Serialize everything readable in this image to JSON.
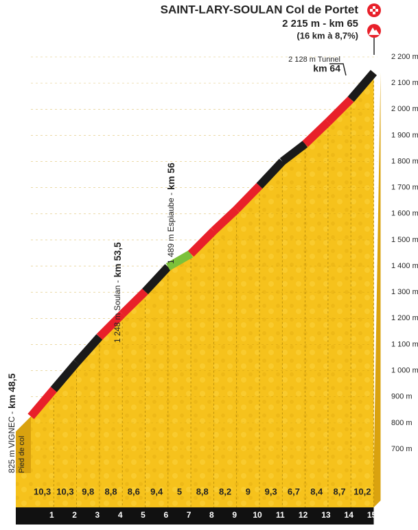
{
  "chart_data": {
    "type": "climb-profile",
    "title": "SAINT-LARY-SOULAN Col de Portet",
    "subtitle": "2 215 m - km 65",
    "note": "(16 km à 8,7%)",
    "start_elevation": 825,
    "ylim": [
      700,
      2200
    ],
    "yticks": [
      {
        "value": 700,
        "label": "700 m"
      },
      {
        "value": 800,
        "label": "800 m"
      },
      {
        "value": 900,
        "label": "900 m"
      },
      {
        "value": 1000,
        "label": "1 000 m"
      },
      {
        "value": 1100,
        "label": "1 100 m"
      },
      {
        "value": 1200,
        "label": "1 200 m"
      },
      {
        "value": 1300,
        "label": "1 300 m"
      },
      {
        "value": 1400,
        "label": "1 400 m"
      },
      {
        "value": 1500,
        "label": "1 500 m"
      },
      {
        "value": 1600,
        "label": "1 600 m"
      },
      {
        "value": 1700,
        "label": "1 700 m"
      },
      {
        "value": 1800,
        "label": "1 800 m"
      },
      {
        "value": 1900,
        "label": "1 900 m"
      },
      {
        "value": 2000,
        "label": "2 000 m"
      },
      {
        "value": 2100,
        "label": "2 100 m"
      },
      {
        "value": 2200,
        "label": "2 200 m"
      }
    ],
    "categories": [
      "1",
      "2",
      "3",
      "4",
      "5",
      "6",
      "7",
      "8",
      "9",
      "10",
      "11",
      "12",
      "13",
      "14",
      "15"
    ],
    "series": [
      {
        "values": [
          10.3,
          10.3,
          9.8,
          8.8,
          8.6,
          9.4,
          5,
          8.8,
          8.2,
          9,
          9.3,
          6.7,
          8.4,
          8.7,
          10.2
        ],
        "value_labels": [
          "10,3",
          "10,3",
          "9,8",
          "8,8",
          "8,6",
          "9,4",
          "5",
          "8,8",
          "8,2",
          "9",
          "9,3",
          "6,7",
          "8,4",
          "8,7",
          "10,2"
        ],
        "colors": [
          "#e8202a",
          "#1a1a1a",
          "#1a1a1a",
          "#e8202a",
          "#e8202a",
          "#1a1a1a",
          "#7cc13a",
          "#e8202a",
          "#e8202a",
          "#e8202a",
          "#1a1a1a",
          "#1a1a1a",
          "#e8202a",
          "#e8202a",
          "#1a1a1a"
        ]
      }
    ],
    "annotations": [
      {
        "text": "825 m VIGNEC -",
        "km": "km 48,5",
        "sub": "Pied de col"
      },
      {
        "text": "1 248 m Soulan -",
        "km": "km 53,5"
      },
      {
        "text": "1 489 m Espiaube -",
        "km": "km 56"
      },
      {
        "text": "2 128 m Tunnel",
        "km": "km 64"
      }
    ]
  }
}
